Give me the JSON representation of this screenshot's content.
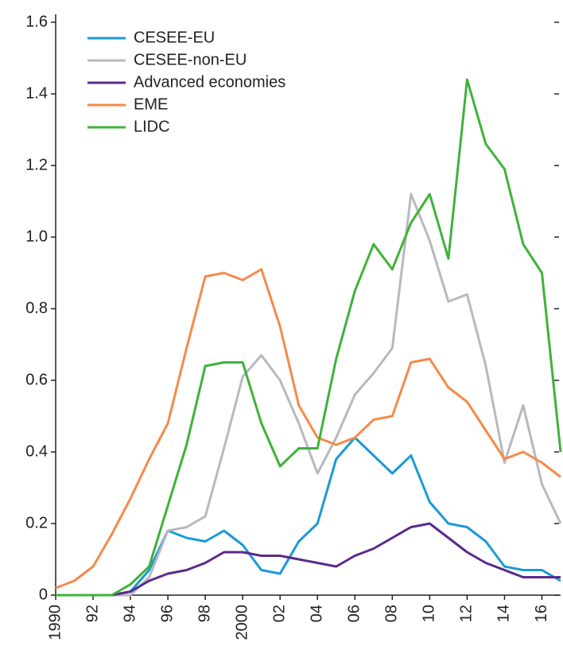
{
  "chart_data": {
    "type": "line",
    "x": [
      1990,
      1991,
      1992,
      1993,
      1994,
      1995,
      1996,
      1997,
      1998,
      1999,
      2000,
      2001,
      2002,
      2003,
      2004,
      2005,
      2006,
      2007,
      2008,
      2009,
      2010,
      2011,
      2012,
      2013,
      2014,
      2015,
      2016,
      2017
    ],
    "xlim": [
      1990,
      2017
    ],
    "xticks": [
      {
        "value": 1990,
        "label": "1990"
      },
      {
        "value": 1992,
        "label": "92"
      },
      {
        "value": 1994,
        "label": "94"
      },
      {
        "value": 1996,
        "label": "96"
      },
      {
        "value": 1998,
        "label": "98"
      },
      {
        "value": 2000,
        "label": "2000"
      },
      {
        "value": 2002,
        "label": "02"
      },
      {
        "value": 2004,
        "label": "04"
      },
      {
        "value": 2006,
        "label": "06"
      },
      {
        "value": 2008,
        "label": "08"
      },
      {
        "value": 2010,
        "label": "10"
      },
      {
        "value": 2012,
        "label": "12"
      },
      {
        "value": 2014,
        "label": "14"
      },
      {
        "value": 2016,
        "label": "16"
      }
    ],
    "ylim": [
      0,
      1.6
    ],
    "yticks": [
      0,
      0.2,
      0.4,
      0.6,
      0.8,
      {
        "value": 1.0,
        "label": "1.0"
      },
      1.2,
      1.4,
      1.6
    ],
    "legend": "upper left",
    "series": [
      {
        "name": "CESEE-EU",
        "color": "#1a9ad6",
        "values": [
          0,
          0,
          0,
          0,
          0.01,
          0.07,
          0.18,
          0.16,
          0.15,
          0.18,
          0.14,
          0.07,
          0.06,
          0.15,
          0.2,
          0.38,
          0.44,
          0.39,
          0.34,
          0.39,
          0.26,
          0.2,
          0.19,
          0.15,
          0.08,
          0.07,
          0.07,
          0.04
        ]
      },
      {
        "name": "CESEE-non-EU",
        "color": "#b8b8c0",
        "values": [
          0,
          0,
          0,
          0,
          0,
          0.05,
          0.18,
          0.19,
          0.22,
          0.41,
          0.61,
          0.67,
          0.6,
          0.48,
          0.34,
          0.44,
          0.56,
          0.62,
          0.69,
          1.12,
          0.99,
          0.82,
          0.84,
          0.64,
          0.37,
          0.53,
          0.31,
          0.2
        ]
      },
      {
        "name": "Advanced economies",
        "color": "#5a2a8a",
        "values": [
          0,
          0,
          0,
          0,
          0.01,
          0.04,
          0.06,
          0.07,
          0.09,
          0.12,
          0.12,
          0.11,
          0.11,
          0.1,
          0.09,
          0.08,
          0.11,
          0.13,
          0.16,
          0.19,
          0.2,
          0.16,
          0.12,
          0.09,
          0.07,
          0.05,
          0.05,
          0.05
        ]
      },
      {
        "name": "EME",
        "color": "#f58a4b",
        "values": [
          0.02,
          0.04,
          0.08,
          0.17,
          0.27,
          0.38,
          0.48,
          0.69,
          0.89,
          0.9,
          0.88,
          0.91,
          0.75,
          0.53,
          0.44,
          0.42,
          0.44,
          0.49,
          0.5,
          0.65,
          0.66,
          0.58,
          0.54,
          0.46,
          0.38,
          0.4,
          0.37,
          0.33
        ]
      },
      {
        "name": "LIDC",
        "color": "#3fb23a",
        "values": [
          0,
          0,
          0,
          0,
          0.03,
          0.08,
          0.25,
          0.42,
          0.64,
          0.65,
          0.65,
          0.48,
          0.36,
          0.41,
          0.41,
          0.66,
          0.85,
          0.98,
          0.91,
          1.04,
          1.12,
          0.94,
          1.44,
          1.26,
          1.19,
          0.98,
          0.9,
          0.4
        ]
      }
    ]
  }
}
